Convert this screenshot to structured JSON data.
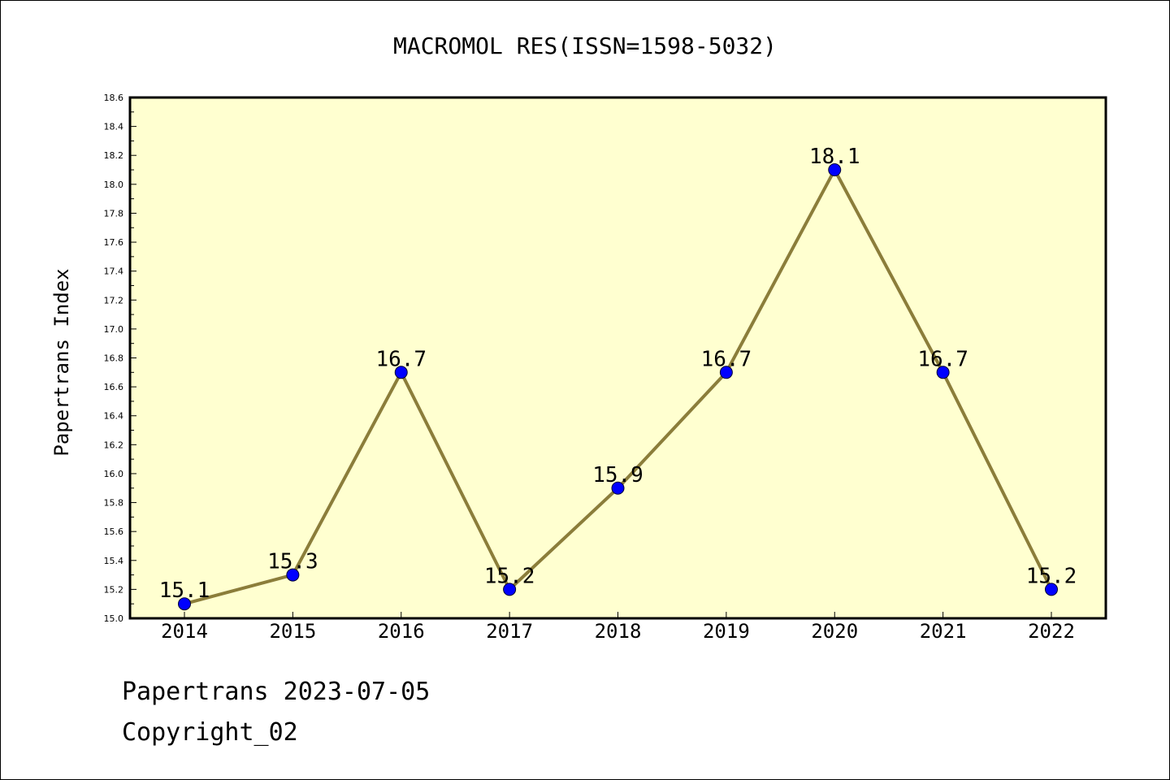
{
  "chart_data": {
    "type": "line",
    "title": "MACROMOL RES(ISSN=1598-5032)",
    "xlabel": "",
    "ylabel": "Papertrans Index",
    "categories": [
      "2014",
      "2015",
      "2016",
      "2017",
      "2018",
      "2019",
      "2020",
      "2021",
      "2022"
    ],
    "series": [
      {
        "values": [
          15.1,
          15.3,
          16.7,
          15.2,
          15.9,
          16.7,
          18.1,
          16.7,
          15.2
        ],
        "labels": [
          "15.1",
          "15.3",
          "16.7",
          "15.2",
          "15.9",
          "16.7",
          "18.1",
          "16.7",
          "15.2"
        ]
      }
    ],
    "ylim": [
      15.0,
      18.6
    ],
    "yticks": [
      "15.0",
      "15.2",
      "15.4",
      "15.6",
      "15.8",
      "16.0",
      "16.2",
      "16.4",
      "16.6",
      "16.8",
      "17.0",
      "17.2",
      "17.4",
      "17.6",
      "17.8",
      "18.0",
      "18.2",
      "18.4",
      "18.6"
    ],
    "grid": false,
    "legend": "none",
    "colors": {
      "plot_background": "#ffffd0",
      "line": "#8b7d3a",
      "marker": "#0000ff"
    }
  },
  "footer": {
    "line1": "Papertrans 2023-07-05",
    "line2": "Copyright_02"
  }
}
